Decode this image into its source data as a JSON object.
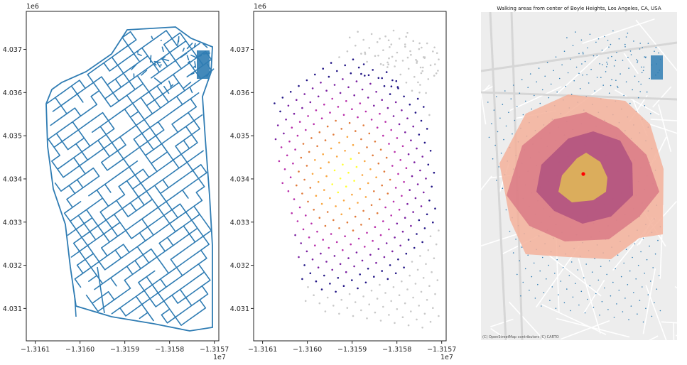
{
  "chart_data": [
    {
      "type": "line",
      "panel": "street-network",
      "xlim": [
        -1.31612,
        -1.31569
      ],
      "ylim": [
        4.03025,
        4.03788
      ],
      "x_ticks": [
        "−1.3161",
        "−1.3160",
        "−1.3159",
        "−1.3158",
        "−1.3157"
      ],
      "x_tick_values": [
        -1.3161,
        -1.316,
        -1.3159,
        -1.3158,
        -1.3157
      ],
      "y_ticks": [
        "4.031",
        "4.032",
        "4.033",
        "4.034",
        "4.035",
        "4.036",
        "4.037"
      ],
      "y_tick_values": [
        4.031,
        4.032,
        4.033,
        4.034,
        4.035,
        4.036,
        4.037
      ],
      "x_offset": "1e7",
      "y_offset": "1e6",
      "series": [
        {
          "color": "#2f7cb3"
        }
      ]
    },
    {
      "type": "scatter",
      "panel": "network-nodes-by-travel-time",
      "xlim": [
        -1.31612,
        -1.31569
      ],
      "ylim": [
        4.03025,
        4.03788
      ],
      "x_ticks": [
        "−1.3161",
        "−1.3160",
        "−1.3159",
        "−1.3158",
        "−1.3157"
      ],
      "x_tick_values": [
        -1.3161,
        -1.316,
        -1.3159,
        -1.3158,
        -1.3157
      ],
      "y_ticks": [
        "4.031",
        "4.032",
        "4.033",
        "4.034",
        "4.035",
        "4.036",
        "4.037"
      ],
      "y_tick_values": [
        4.031,
        4.032,
        4.033,
        4.034,
        4.035,
        4.036,
        4.037
      ],
      "x_offset": "1e7",
      "y_offset": "1e6",
      "colormap": [
        "#ffff33",
        "#f9a640",
        "#e07a3a",
        "#b82eaa",
        "#7a1fa0",
        "#231686"
      ],
      "unreached_color": "#c8c8c8",
      "center": [
        -1.31592,
        4.03408
      ]
    },
    {
      "type": "area",
      "panel": "walking-isochrones",
      "title": "Walking areas from center of Boyle Heights, Los Angeles, CA, USA",
      "attribution": "(C) OpenStreetMap contributors (C) CARTO",
      "layers": [
        {
          "fill": "#f3b09a",
          "opacity": 0.85
        },
        {
          "fill": "#d97a86",
          "opacity": 0.85
        },
        {
          "fill": "#b0517f",
          "opacity": 0.85
        },
        {
          "fill": "#dcb25a",
          "opacity": 0.95
        }
      ],
      "center_color": "#ff0000",
      "node_color": "#2f7cb3"
    }
  ]
}
